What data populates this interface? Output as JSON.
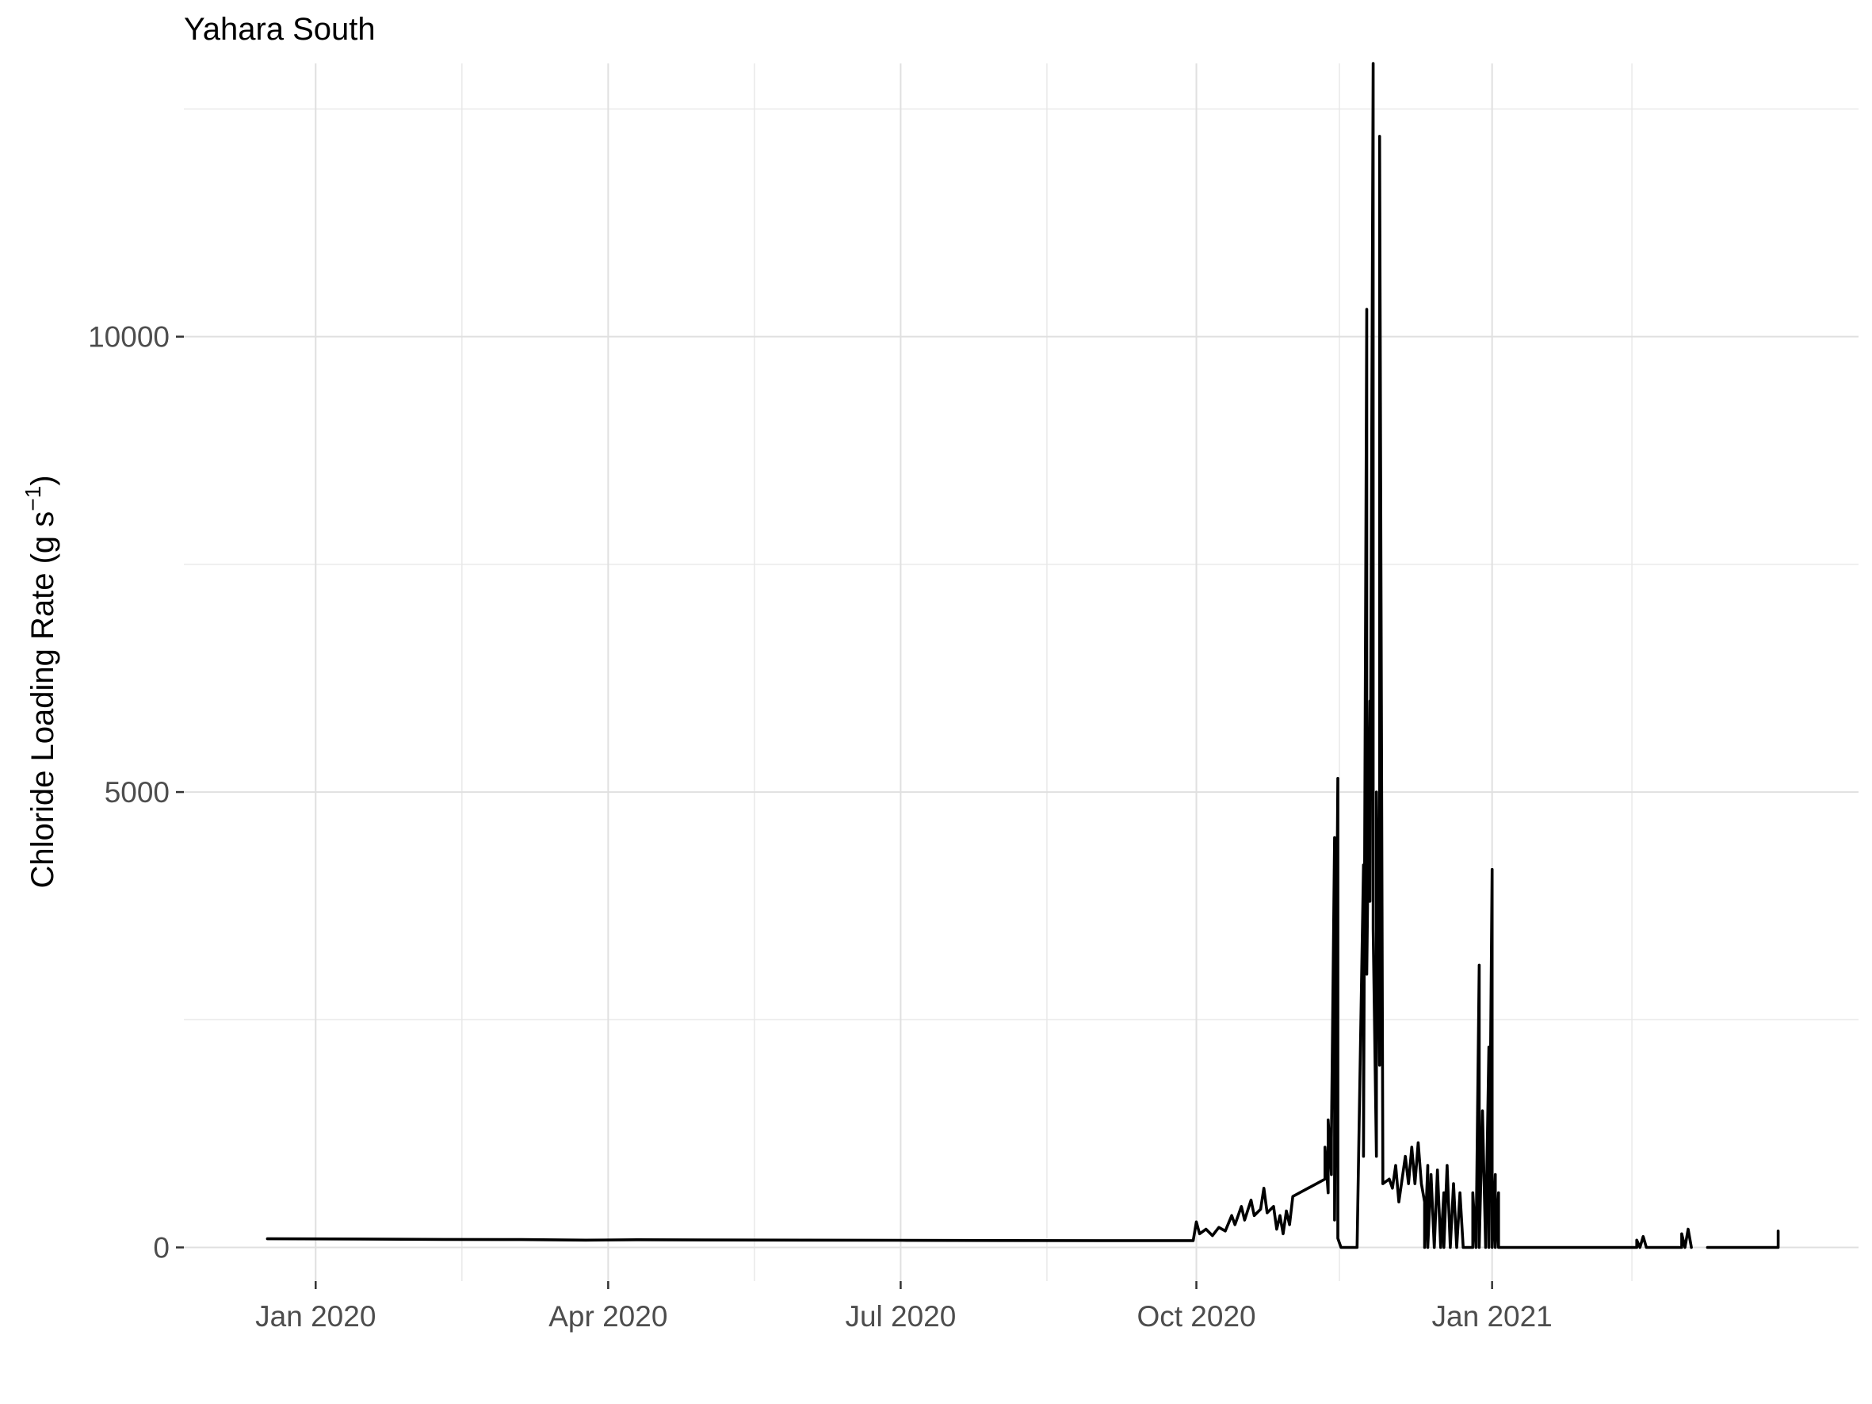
{
  "chart_data": {
    "type": "line",
    "title": "Yahara South",
    "xlabel": "",
    "ylabel": "Chloride Loading Rate (g s",
    "ylabel_sup": "−1",
    "ylabel_close": ")",
    "x_tick_labels": [
      "Jan 2020",
      "Apr 2020",
      "Jul 2020",
      "Oct 2020",
      "Jan 2021"
    ],
    "x_tick_dates": [
      "2020-01-01",
      "2020-04-01",
      "2020-07-01",
      "2020-10-01",
      "2021-01-01"
    ],
    "y_tick_labels": [
      "0",
      "5000",
      "10000"
    ],
    "y_tick_values": [
      0,
      5000,
      10000
    ],
    "xlim": [
      "2019-11-21",
      "2021-04-25"
    ],
    "ylim": [
      -370,
      13000
    ],
    "grid": true,
    "legend": "none",
    "line_color": "#000000",
    "series": [
      {
        "segments": [
          [
            [
              "2019-12-17",
              95
            ],
            [
              "2020-01-15",
              92
            ],
            [
              "2020-02-10",
              88
            ],
            [
              "2020-03-05",
              86
            ],
            [
              "2020-03-25",
              80
            ],
            [
              "2020-04-10",
              84
            ],
            [
              "2020-05-01",
              82
            ],
            [
              "2020-06-01",
              80
            ],
            [
              "2020-07-01",
              78
            ],
            [
              "2020-08-01",
              76
            ],
            [
              "2020-09-01",
              75
            ],
            [
              "2020-09-30",
              75
            ],
            [
              "2020-10-01",
              280
            ],
            [
              "2020-10-02",
              150
            ],
            [
              "2020-10-04",
              200
            ],
            [
              "2020-10-06",
              130
            ],
            [
              "2020-10-08",
              220
            ],
            [
              "2020-10-10",
              180
            ],
            [
              "2020-10-12",
              350
            ],
            [
              "2020-10-13",
              250
            ],
            [
              "2020-10-15",
              450
            ],
            [
              "2020-10-16",
              300
            ],
            [
              "2020-10-18",
              520
            ],
            [
              "2020-10-19",
              350
            ],
            [
              "2020-10-21",
              420
            ],
            [
              "2020-10-22",
              650
            ],
            [
              "2020-10-23",
              380
            ],
            [
              "2020-10-25",
              450
            ],
            [
              "2020-10-26",
              200
            ],
            [
              "2020-10-27",
              350
            ],
            [
              "2020-10-28",
              150
            ],
            [
              "2020-10-29",
              400
            ],
            [
              "2020-10-30",
              250
            ],
            [
              "2020-10-31",
              560
            ],
            [
              "2020-11-10",
              750
            ],
            [
              "2020-11-10",
              1100
            ],
            [
              "2020-11-11",
              600
            ],
            [
              "2020-11-11",
              1400
            ],
            [
              "2020-11-12",
              800
            ],
            [
              "2020-11-12",
              1200
            ],
            [
              "2020-11-13",
              4500
            ],
            [
              "2020-11-13",
              300
            ],
            [
              "2020-11-14",
              5150
            ],
            [
              "2020-11-14",
              100
            ],
            [
              "2020-11-15",
              0
            ],
            [
              "2020-11-18",
              0
            ],
            [
              "2020-11-19",
              0
            ],
            [
              "2020-11-20",
              0
            ],
            [
              "2020-11-22",
              4200
            ],
            [
              "2020-11-22",
              1000
            ],
            [
              "2020-11-23",
              10300
            ],
            [
              "2020-11-23",
              3000
            ],
            [
              "2020-11-24",
              6000
            ],
            [
              "2020-11-24",
              3800
            ],
            [
              "2020-11-25",
              13000
            ],
            [
              "2020-11-25",
              3500
            ],
            [
              "2020-11-26",
              1000
            ],
            [
              "2020-11-26",
              5000
            ],
            [
              "2020-11-27",
              2000
            ],
            [
              "2020-11-27",
              12200
            ],
            [
              "2020-11-28",
              900
            ],
            [
              "2020-11-28",
              700
            ],
            [
              "2020-11-30",
              750
            ],
            [
              "2020-12-01",
              650
            ],
            [
              "2020-12-02",
              900
            ],
            [
              "2020-12-03",
              500
            ],
            [
              "2020-12-05",
              1000
            ],
            [
              "2020-12-06",
              700
            ],
            [
              "2020-12-07",
              1100
            ],
            [
              "2020-12-08",
              700
            ],
            [
              "2020-12-09",
              1150
            ],
            [
              "2020-12-10",
              700
            ],
            [
              "2020-12-11",
              500
            ],
            [
              "2020-12-11",
              0
            ],
            [
              "2020-12-12",
              900
            ],
            [
              "2020-12-12",
              0
            ],
            [
              "2020-12-13",
              800
            ],
            [
              "2020-12-14",
              0
            ],
            [
              "2020-12-15",
              850
            ],
            [
              "2020-12-16",
              0
            ],
            [
              "2020-12-17",
              600
            ],
            [
              "2020-12-17",
              0
            ],
            [
              "2020-12-18",
              900
            ],
            [
              "2020-12-19",
              0
            ],
            [
              "2020-12-20",
              700
            ],
            [
              "2020-12-21",
              0
            ],
            [
              "2020-12-22",
              600
            ],
            [
              "2020-12-23",
              0
            ],
            [
              "2020-12-26",
              0
            ],
            [
              "2020-12-26",
              600
            ],
            [
              "2020-12-27",
              0
            ],
            [
              "2020-12-28",
              3100
            ],
            [
              "2020-12-28",
              0
            ],
            [
              "2020-12-29",
              1500
            ],
            [
              "2020-12-30",
              0
            ],
            [
              "2020-12-31",
              2200
            ],
            [
              "2020-12-31",
              0
            ],
            [
              "2021-01-01",
              4150
            ],
            [
              "2021-01-01",
              0
            ],
            [
              "2021-01-02",
              800
            ],
            [
              "2021-01-02",
              0
            ],
            [
              "2021-01-03",
              600
            ],
            [
              "2021-01-03",
              0
            ],
            [
              "2021-01-05",
              0
            ],
            [
              "2021-02-15",
              0
            ],
            [
              "2021-02-15",
              80
            ],
            [
              "2021-02-16",
              0
            ],
            [
              "2021-02-17",
              120
            ],
            [
              "2021-02-18",
              0
            ],
            [
              "2021-03-01",
              0
            ],
            [
              "2021-03-01",
              150
            ],
            [
              "2021-03-02",
              0
            ],
            [
              "2021-03-03",
              200
            ],
            [
              "2021-03-04",
              0
            ]
          ],
          [
            [
              "2021-03-09",
              0
            ],
            [
              "2021-03-31",
              0
            ],
            [
              "2021-03-31",
              180
            ]
          ]
        ]
      }
    ]
  }
}
